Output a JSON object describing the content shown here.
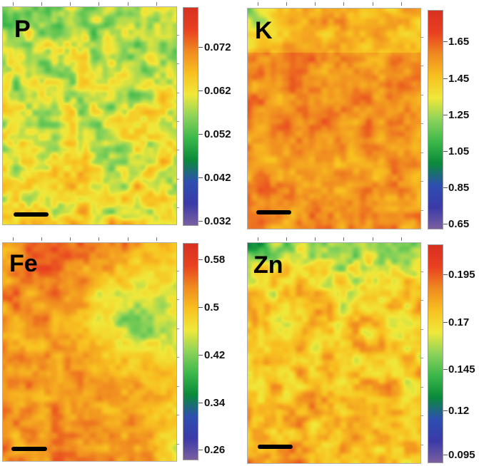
{
  "chart_data": [
    {
      "type": "heatmap",
      "title": "P",
      "colorbar": {
        "ticks": [
          "0.072",
          "0.062",
          "0.052",
          "0.042",
          "0.032"
        ],
        "range": [
          0.032,
          0.08
        ]
      },
      "colormap": [
        "#7a5fa0",
        "#3a3aa8",
        "#2d4fb0",
        "#0a8a3a",
        "#3cb84a",
        "#8cd35a",
        "#f0e83a",
        "#f8c020",
        "#f08a20",
        "#e84020",
        "#d83020"
      ]
    },
    {
      "type": "heatmap",
      "title": "K",
      "colorbar": {
        "ticks": [
          "1.65",
          "1.45",
          "1.25",
          "1.05",
          "0.85",
          "0.65"
        ],
        "range": [
          0.65,
          1.8
        ]
      },
      "colormap": [
        "#7a5fa0",
        "#3a3aa8",
        "#2d4fb0",
        "#0a8a3a",
        "#3cb84a",
        "#8cd35a",
        "#f0e83a",
        "#f8c020",
        "#f08a20",
        "#e84020",
        "#d83020"
      ]
    },
    {
      "type": "heatmap",
      "title": "Fe",
      "colorbar": {
        "ticks": [
          "0.58",
          "0.5",
          "0.42",
          "0.34",
          "0.26"
        ],
        "range": [
          0.26,
          0.61
        ]
      },
      "colormap": [
        "#7a5fa0",
        "#3a3aa8",
        "#2d4fb0",
        "#0a8a3a",
        "#3cb84a",
        "#8cd35a",
        "#f0e83a",
        "#f8c020",
        "#f08a20",
        "#e84020",
        "#d83020"
      ]
    },
    {
      "type": "heatmap",
      "title": "Zn",
      "colorbar": {
        "ticks": [
          "0.195",
          "0.17",
          "0.145",
          "0.12",
          "0.095"
        ],
        "range": [
          0.095,
          0.208
        ]
      },
      "colormap": [
        "#7a5fa0",
        "#3a3aa8",
        "#2d4fb0",
        "#0a8a3a",
        "#3cb84a",
        "#8cd35a",
        "#f0e83a",
        "#f8c020",
        "#f08a20",
        "#e84020",
        "#d83020"
      ]
    }
  ]
}
